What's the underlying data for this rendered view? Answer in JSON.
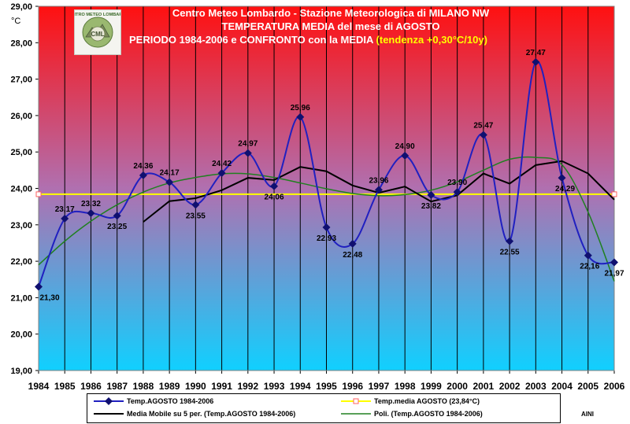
{
  "chart_data": {
    "type": "line",
    "title_lines": [
      "Centro Meteo Lombardo - Stazione Meteorologica di MILANO NW",
      "TEMPERATURA MEDIA del mese di AGOSTO",
      "PERIODO 1984-2006 e CONFRONTO con la MEDIA"
    ],
    "trend_note": "(tendenza +0,30°C/10y)",
    "y_unit": "°C",
    "ylim": [
      19,
      29
    ],
    "y_ticks": [
      "19,00",
      "20,00",
      "21,00",
      "22,00",
      "23,00",
      "24,00",
      "25,00",
      "26,00",
      "27,00",
      "28,00",
      "29,00"
    ],
    "categories": [
      "1984",
      "1985",
      "1986",
      "1987",
      "1988",
      "1989",
      "1990",
      "1991",
      "1992",
      "1993",
      "1994",
      "1995",
      "1996",
      "1997",
      "1998",
      "1999",
      "2000",
      "2001",
      "2002",
      "2003",
      "2004",
      "2005",
      "2006"
    ],
    "series": [
      {
        "name": "Temp.AGOSTO 1984-2006",
        "color": "#2020c0",
        "marker": "diamond",
        "smooth": true,
        "values": [
          21.3,
          23.17,
          23.32,
          23.25,
          24.36,
          24.17,
          23.55,
          24.42,
          24.97,
          24.06,
          25.96,
          22.93,
          22.48,
          23.96,
          24.9,
          23.82,
          23.9,
          25.47,
          22.55,
          27.47,
          24.29,
          22.16,
          21.97
        ],
        "labels": [
          "21,30",
          "23,17",
          "23,32",
          "23,25",
          "24,36",
          "24,17",
          "23,55",
          "24,42",
          "24,97",
          "24,06",
          "25,96",
          "22,93",
          "22,48",
          "23,96",
          "24,90",
          "23,82",
          "23,90",
          "25,47",
          "22,55",
          "27,47",
          "24,29",
          "22,16",
          "21,97"
        ]
      },
      {
        "name": "Temp.media AGOSTO (23,84°C)",
        "color": "#ffff00",
        "value": 23.84
      },
      {
        "name": "Media Mobile su 5 per. (Temp.AGOSTO 1984-2006)",
        "color": "#000000",
        "values": [
          null,
          null,
          null,
          null,
          23.08,
          23.65,
          23.73,
          23.95,
          24.29,
          24.23,
          24.59,
          24.47,
          24.08,
          23.88,
          24.05,
          23.64,
          23.81,
          24.41,
          24.13,
          24.64,
          24.75,
          24.41,
          23.69
        ]
      },
      {
        "name": "Poli. (Temp.AGOSTO 1984-2006)",
        "color": "#208020",
        "values": [
          21.9,
          22.55,
          23.1,
          23.55,
          23.9,
          24.15,
          24.3,
          24.4,
          24.4,
          24.3,
          24.15,
          23.99,
          23.86,
          23.8,
          23.83,
          23.95,
          24.18,
          24.5,
          24.8,
          24.85,
          24.65,
          23.35,
          21.45
        ]
      }
    ],
    "colors": {
      "bg_top": "#ff1010",
      "bg_bottom": "#10d0ff",
      "grid": "#000000"
    },
    "grid": true,
    "legend_position": "bottom"
  },
  "logo_text": "CENTRO METEO LOMBARDO",
  "logo_abbr": "CML",
  "author": "AINI"
}
